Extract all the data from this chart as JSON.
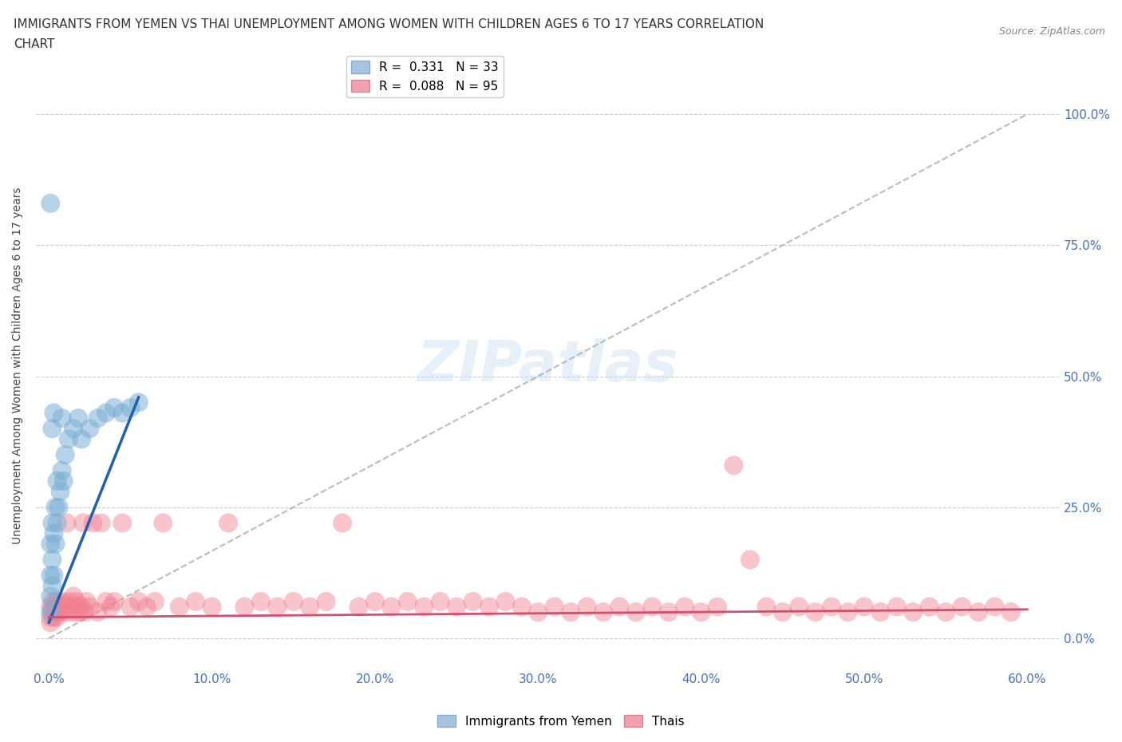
{
  "title_line1": "IMMIGRANTS FROM YEMEN VS THAI UNEMPLOYMENT AMONG WOMEN WITH CHILDREN AGES 6 TO 17 YEARS CORRELATION",
  "title_line2": "CHART",
  "source": "Source: ZipAtlas.com",
  "ylabel": "Unemployment Among Women with Children Ages 6 to 17 years",
  "watermark": "ZIPatlas",
  "yemen_color": "#7ab0d4",
  "thai_color": "#f08090",
  "yemen_legend_color": "#a8c4e0",
  "thai_legend_color": "#f4a0b0",
  "legend_r1": "R =  0.331   N = 33",
  "legend_r2": "R =  0.088   N = 95",
  "xlim": [
    0.0,
    0.6
  ],
  "ylim": [
    0.0,
    1.0
  ],
  "xtick_vals": [
    0.0,
    0.1,
    0.2,
    0.3,
    0.4,
    0.5,
    0.6
  ],
  "ytick_vals": [
    0.0,
    0.25,
    0.5,
    0.75,
    1.0
  ],
  "blue_line_x": [
    0.0,
    0.055
  ],
  "blue_line_y": [
    0.03,
    0.46
  ],
  "pink_line_x": [
    0.0,
    0.6
  ],
  "pink_line_y": [
    0.04,
    0.055
  ],
  "dashed_line_x": [
    0.0,
    0.6
  ],
  "dashed_line_y": [
    0.0,
    1.0
  ],
  "yemen_x": [
    0.001,
    0.001,
    0.001,
    0.001,
    0.002,
    0.002,
    0.002,
    0.003,
    0.003,
    0.004,
    0.004,
    0.005,
    0.005,
    0.006,
    0.007,
    0.008,
    0.009,
    0.01,
    0.012,
    0.015,
    0.018,
    0.02,
    0.025,
    0.03,
    0.035,
    0.04,
    0.045,
    0.05,
    0.055,
    0.001,
    0.002,
    0.003,
    0.008
  ],
  "yemen_y": [
    0.05,
    0.08,
    0.12,
    0.18,
    0.1,
    0.15,
    0.22,
    0.12,
    0.2,
    0.18,
    0.25,
    0.22,
    0.3,
    0.25,
    0.28,
    0.32,
    0.3,
    0.35,
    0.38,
    0.4,
    0.42,
    0.38,
    0.4,
    0.42,
    0.43,
    0.44,
    0.43,
    0.44,
    0.45,
    0.83,
    0.4,
    0.43,
    0.42
  ],
  "thai_x": [
    0.001,
    0.001,
    0.001,
    0.002,
    0.002,
    0.003,
    0.003,
    0.004,
    0.004,
    0.005,
    0.005,
    0.006,
    0.006,
    0.007,
    0.008,
    0.009,
    0.01,
    0.011,
    0.012,
    0.013,
    0.014,
    0.015,
    0.016,
    0.017,
    0.018,
    0.019,
    0.02,
    0.021,
    0.022,
    0.023,
    0.025,
    0.027,
    0.03,
    0.032,
    0.035,
    0.038,
    0.04,
    0.045,
    0.05,
    0.055,
    0.06,
    0.065,
    0.07,
    0.08,
    0.09,
    0.1,
    0.11,
    0.12,
    0.13,
    0.14,
    0.15,
    0.16,
    0.17,
    0.18,
    0.19,
    0.2,
    0.21,
    0.22,
    0.23,
    0.24,
    0.25,
    0.26,
    0.27,
    0.28,
    0.29,
    0.3,
    0.31,
    0.32,
    0.33,
    0.34,
    0.35,
    0.36,
    0.37,
    0.38,
    0.39,
    0.4,
    0.41,
    0.42,
    0.43,
    0.44,
    0.45,
    0.46,
    0.47,
    0.48,
    0.49,
    0.5,
    0.51,
    0.52,
    0.53,
    0.54,
    0.55,
    0.56,
    0.57,
    0.58,
    0.59
  ],
  "thai_y": [
    0.04,
    0.06,
    0.03,
    0.05,
    0.07,
    0.04,
    0.06,
    0.05,
    0.07,
    0.06,
    0.04,
    0.07,
    0.05,
    0.06,
    0.05,
    0.07,
    0.06,
    0.22,
    0.05,
    0.07,
    0.06,
    0.08,
    0.05,
    0.07,
    0.06,
    0.05,
    0.06,
    0.22,
    0.05,
    0.07,
    0.06,
    0.22,
    0.05,
    0.22,
    0.07,
    0.06,
    0.07,
    0.22,
    0.06,
    0.07,
    0.06,
    0.07,
    0.22,
    0.06,
    0.07,
    0.06,
    0.22,
    0.06,
    0.07,
    0.06,
    0.07,
    0.06,
    0.07,
    0.22,
    0.06,
    0.07,
    0.06,
    0.07,
    0.06,
    0.07,
    0.06,
    0.07,
    0.06,
    0.07,
    0.06,
    0.05,
    0.06,
    0.05,
    0.06,
    0.05,
    0.06,
    0.05,
    0.06,
    0.05,
    0.06,
    0.05,
    0.06,
    0.33,
    0.15,
    0.06,
    0.05,
    0.06,
    0.05,
    0.06,
    0.05,
    0.06,
    0.05,
    0.06,
    0.05,
    0.06,
    0.05,
    0.06,
    0.05,
    0.06,
    0.05
  ]
}
